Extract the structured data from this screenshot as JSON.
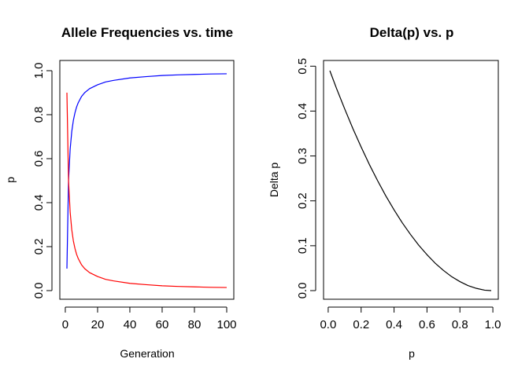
{
  "chart_data": [
    {
      "type": "line",
      "title": "Allele Frequencies vs. time",
      "xlabel": "Generation",
      "ylabel": "p",
      "xlim": [
        1,
        100
      ],
      "ylim": [
        0,
        1
      ],
      "xticks": [
        0,
        20,
        40,
        60,
        80,
        100
      ],
      "xtick_labels": [
        "0",
        "20",
        "40",
        "60",
        "80",
        "100"
      ],
      "yticks": [
        0,
        0.2,
        0.4,
        0.6,
        0.8,
        1.0
      ],
      "ytick_labels": [
        "0.0",
        "0.2",
        "0.4",
        "0.6",
        "0.8",
        "1.0"
      ],
      "grid": false,
      "series": [
        {
          "color": "#0000ff",
          "x": [
            1,
            2,
            3,
            4,
            5,
            6,
            7,
            8,
            10,
            12,
            15,
            20,
            25,
            30,
            40,
            50,
            60,
            70,
            80,
            90,
            100
          ],
          "values": [
            0.1,
            0.5,
            0.642,
            0.723,
            0.774,
            0.809,
            0.835,
            0.854,
            0.882,
            0.9,
            0.918,
            0.936,
            0.949,
            0.956,
            0.967,
            0.973,
            0.978,
            0.981,
            0.983,
            0.985,
            0.986
          ]
        },
        {
          "color": "#ff0000",
          "x": [
            1,
            2,
            3,
            4,
            5,
            6,
            7,
            8,
            10,
            12,
            15,
            20,
            25,
            30,
            40,
            50,
            60,
            70,
            80,
            90,
            100
          ],
          "values": [
            0.9,
            0.5,
            0.358,
            0.277,
            0.226,
            0.191,
            0.165,
            0.146,
            0.118,
            0.1,
            0.082,
            0.064,
            0.051,
            0.044,
            0.033,
            0.027,
            0.022,
            0.019,
            0.017,
            0.015,
            0.014
          ]
        }
      ]
    },
    {
      "type": "line",
      "title": "Delta(p) vs. p",
      "xlabel": "p",
      "ylabel": "Delta p",
      "xlim": [
        0.01,
        0.99
      ],
      "ylim": [
        0,
        0.49
      ],
      "xticks": [
        0,
        0.2,
        0.4,
        0.6,
        0.8,
        1.0
      ],
      "xtick_labels": [
        "0.0",
        "0.2",
        "0.4",
        "0.6",
        "0.8",
        "1.0"
      ],
      "yticks": [
        0,
        0.1,
        0.2,
        0.3,
        0.4,
        0.5
      ],
      "ytick_labels": [
        "0.0",
        "0.1",
        "0.2",
        "0.3",
        "0.4",
        "0.5"
      ],
      "grid": false,
      "series": [
        {
          "color": "#000000",
          "x": [
            0.01,
            0.05,
            0.1,
            0.15,
            0.2,
            0.25,
            0.3,
            0.35,
            0.4,
            0.45,
            0.5,
            0.55,
            0.6,
            0.65,
            0.7,
            0.75,
            0.8,
            0.85,
            0.9,
            0.95,
            0.99
          ],
          "values": [
            0.49,
            0.451,
            0.405,
            0.361,
            0.32,
            0.281,
            0.245,
            0.211,
            0.18,
            0.151,
            0.125,
            0.101,
            0.08,
            0.061,
            0.045,
            0.031,
            0.02,
            0.011,
            0.005,
            0.001,
            0.0
          ]
        }
      ]
    }
  ]
}
